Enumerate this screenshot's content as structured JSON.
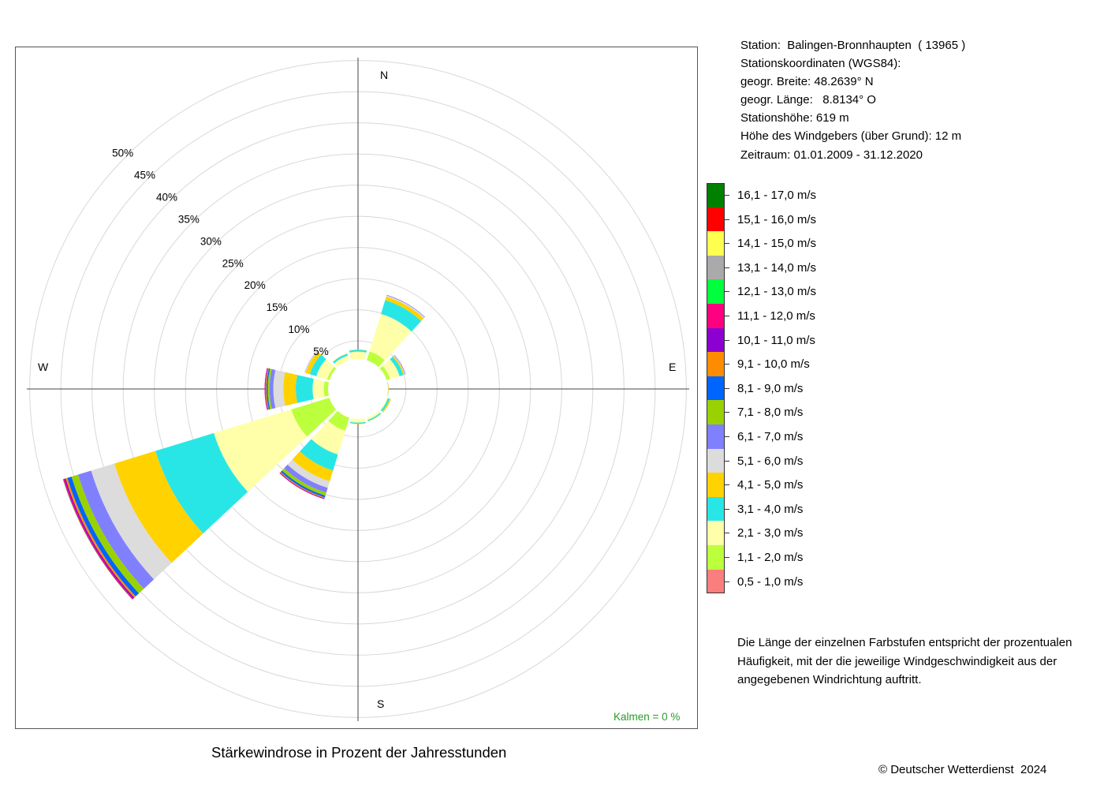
{
  "station": {
    "lines": [
      "Station:  Balingen-Bronnhaupten  ( 13965 )",
      "Stationskoordinaten (WGS84):",
      "geogr. Breite: 48.2639° N",
      "geogr. Länge:   8.8134° O",
      "Stationshöhe: 619 m",
      "Höhe des Windgebers (über Grund): 12 m",
      "Zeitraum: 01.01.2009 - 31.12.2020"
    ]
  },
  "explanation": [
    "Die Länge der einzelnen Farbstufen entspricht der prozentualen",
    "Häufigkeit, mit der die jeweilige Windgeschwindigkeit aus der",
    "angegebenen Windrichtung auftritt."
  ],
  "calm_label": "Kalmen  =  0 %",
  "copyright": "© Deutscher Wetterdienst  2024",
  "chart_data": {
    "type": "wind-rose",
    "title": "Stärkewindrose in Prozent der Jahresstunden",
    "directions_deg": [
      0,
      30,
      60,
      90,
      120,
      150,
      180,
      210,
      240,
      270,
      300,
      330
    ],
    "compass": {
      "N": "N",
      "E": "E",
      "S": "S",
      "W": "W"
    },
    "ring_values": [
      5,
      10,
      15,
      20,
      25,
      30,
      35,
      40,
      45,
      50
    ],
    "ring_labels": [
      "5%",
      "10%",
      "15%",
      "20%",
      "25%",
      "30%",
      "35%",
      "40%",
      "45%",
      "50%"
    ],
    "calm_percent": 0,
    "hole_offset_percent": 2.7,
    "classes": [
      {
        "label": "0,5 - 1,0 m/s",
        "color": "#fb7e7e"
      },
      {
        "label": "1,1 - 2,0 m/s",
        "color": "#bcff3c"
      },
      {
        "label": "2,1 - 3,0 m/s",
        "color": "#ffffa9"
      },
      {
        "label": "3,1 - 4,0 m/s",
        "color": "#29e6e6"
      },
      {
        "label": "4,1 - 5,0 m/s",
        "color": "#ffd200"
      },
      {
        "label": "5,1 - 6,0 m/s",
        "color": "#dcdcdc"
      },
      {
        "label": "6,1 - 7,0 m/s",
        "color": "#8080ff"
      },
      {
        "label": "7,1 - 8,0 m/s",
        "color": "#99d200"
      },
      {
        "label": "8,1 - 9,0 m/s",
        "color": "#0064ff"
      },
      {
        "label": "9,1 - 10,0 m/s",
        "color": "#ff8c00"
      },
      {
        "label": "10,1 - 11,0 m/s",
        "color": "#8c00d2"
      },
      {
        "label": "11,1 - 12,0 m/s",
        "color": "#ff0080"
      },
      {
        "label": "12,1 - 13,0 m/s",
        "color": "#00ff3c"
      },
      {
        "label": "13,1 - 14,0 m/s",
        "color": "#aaaaaa"
      },
      {
        "label": "14,1 - 15,0 m/s",
        "color": "#ffff50"
      },
      {
        "label": "15,1 - 16,0 m/s",
        "color": "#ff0000"
      },
      {
        "label": "16,1 - 17,0 m/s",
        "color": "#008000"
      }
    ],
    "series": [
      {
        "direction_deg": 0,
        "values": [
          0.5,
          1.5,
          1.3,
          0.3,
          0.05,
          0,
          0,
          0,
          0,
          0,
          0,
          0,
          0,
          0,
          0,
          0,
          0
        ]
      },
      {
        "direction_deg": 30,
        "values": [
          0.6,
          3.0,
          6.3,
          2.3,
          0.6,
          0.2,
          0.1,
          0,
          0,
          0,
          0,
          0,
          0,
          0,
          0,
          0,
          0
        ]
      },
      {
        "direction_deg": 60,
        "values": [
          0.6,
          2.1,
          1.6,
          0.6,
          0.2,
          0.1,
          0.1,
          0,
          0,
          0,
          0,
          0,
          0,
          0,
          0,
          0,
          0
        ]
      },
      {
        "direction_deg": 90,
        "values": [
          0.5,
          0.9,
          0.5,
          0.2,
          0.1,
          0.05,
          0,
          0,
          0,
          0,
          0,
          0,
          0,
          0,
          0,
          0,
          0
        ]
      },
      {
        "direction_deg": 120,
        "values": [
          0.5,
          1.0,
          0.8,
          0.3,
          0.2,
          0.05,
          0,
          0,
          0,
          0,
          0,
          0,
          0,
          0,
          0,
          0,
          0
        ]
      },
      {
        "direction_deg": 150,
        "values": [
          0.5,
          1.4,
          0.6,
          0.2,
          0.05,
          0,
          0,
          0,
          0,
          0,
          0,
          0,
          0,
          0,
          0,
          0,
          0
        ]
      },
      {
        "direction_deg": 180,
        "values": [
          0.5,
          1.4,
          0.8,
          0.2,
          0.05,
          0,
          0,
          0,
          0,
          0,
          0,
          0,
          0,
          0,
          0,
          0,
          0
        ]
      },
      {
        "direction_deg": 210,
        "values": [
          0.6,
          3.7,
          4.0,
          2.7,
          1.8,
          1.1,
          0.8,
          0.5,
          0.3,
          0.15,
          0.1,
          0.05,
          0,
          0,
          0,
          0,
          0
        ]
      },
      {
        "direction_deg": 240,
        "values": [
          0.7,
          7.8,
          13.0,
          9.8,
          6.9,
          3.9,
          2.2,
          1.1,
          0.7,
          0.3,
          0.2,
          0.2,
          0.05,
          0,
          0,
          0,
          0
        ]
      },
      {
        "direction_deg": 270,
        "values": [
          0.5,
          2.3,
          1.8,
          2.7,
          2.0,
          1.6,
          0.6,
          0.3,
          0.2,
          0.15,
          0.1,
          0.05,
          0,
          0,
          0,
          0,
          0
        ]
      },
      {
        "direction_deg": 300,
        "values": [
          0.6,
          1.9,
          1.8,
          1.1,
          0.7,
          0.1,
          0.05,
          0,
          0,
          0,
          0,
          0,
          0,
          0,
          0,
          0,
          0
        ]
      },
      {
        "direction_deg": 330,
        "values": [
          0.5,
          1.4,
          1.0,
          0.3,
          0.05,
          0,
          0,
          0,
          0,
          0,
          0,
          0,
          0,
          0,
          0,
          0,
          0
        ]
      }
    ]
  }
}
